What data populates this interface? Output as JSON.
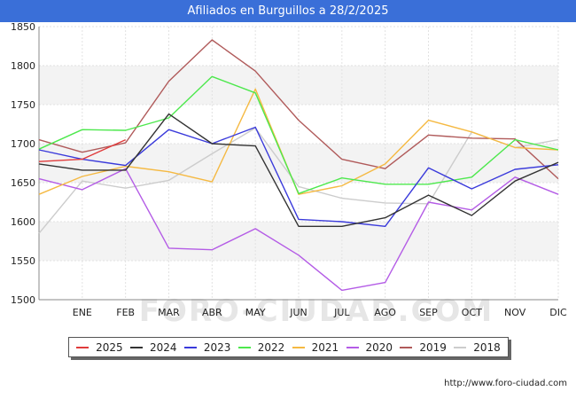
{
  "header": {
    "title": "Afiliados en Burguillos a 28/2/2025"
  },
  "footer": {
    "credit": "http://www.foro-ciudad.com"
  },
  "watermark": "FORO-CIUDAD.COM",
  "chart_data": {
    "type": "line",
    "title": "Afiliados en Burguillos a 28/2/2025",
    "categories": [
      "",
      "ENE",
      "FEB",
      "MAR",
      "ABR",
      "MAY",
      "JUN",
      "JUL",
      "AGO",
      "SEP",
      "OCT",
      "NOV",
      "DIC"
    ],
    "ylim": [
      1500,
      1850
    ],
    "yticks": [
      1500,
      1550,
      1600,
      1650,
      1700,
      1750,
      1800,
      1850
    ],
    "grid": true,
    "legend_position": "bottom",
    "series": [
      {
        "name": "2025",
        "color": "#e03b3b",
        "values": [
          1677,
          1680,
          1705,
          null,
          null,
          null,
          null,
          null,
          null,
          null,
          null,
          null,
          null
        ]
      },
      {
        "name": "2024",
        "color": "#333333",
        "values": [
          1674,
          1666,
          1666,
          1738,
          1700,
          1697,
          1594,
          1594,
          1605,
          1634,
          1608,
          1652,
          1676
        ]
      },
      {
        "name": "2023",
        "color": "#3a3adb",
        "values": [
          1692,
          1680,
          1672,
          1718,
          1700,
          1721,
          1603,
          1600,
          1594,
          1669,
          1642,
          1667,
          1673
        ]
      },
      {
        "name": "2022",
        "color": "#4de84d",
        "values": [
          1693,
          1718,
          1717,
          1733,
          1786,
          1765,
          1636,
          1656,
          1648,
          1648,
          1657,
          1705,
          1692
        ]
      },
      {
        "name": "2021",
        "color": "#f5b942",
        "values": [
          1635,
          1658,
          1671,
          1664,
          1651,
          1770,
          1635,
          1646,
          1674,
          1730,
          1715,
          1695,
          1692
        ]
      },
      {
        "name": "2020",
        "color": "#b45ce6",
        "values": [
          1655,
          1641,
          1668,
          1566,
          1564,
          1591,
          1557,
          1512,
          1522,
          1625,
          1615,
          1657,
          1635
        ]
      },
      {
        "name": "2019",
        "color": "#b05a5a",
        "values": [
          1705,
          1689,
          1701,
          1780,
          1833,
          1793,
          1730,
          1680,
          1668,
          1711,
          1707,
          1706,
          1655
        ]
      },
      {
        "name": "2018",
        "color": "#cccccc",
        "values": [
          1585,
          1652,
          1643,
          1653,
          1687,
          1720,
          1645,
          1630,
          1624,
          1623,
          1715,
          1695,
          1705
        ]
      }
    ]
  }
}
